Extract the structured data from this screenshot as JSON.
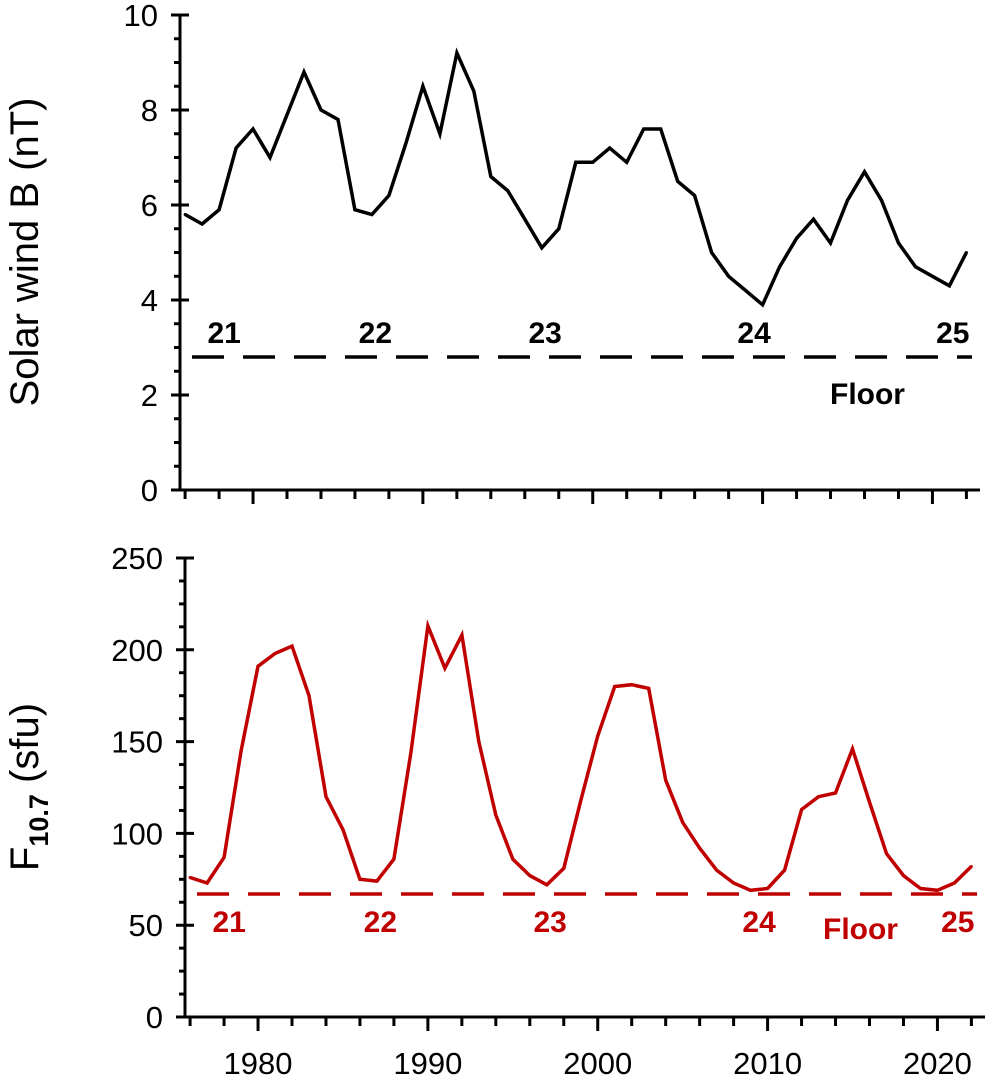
{
  "chart_data": [
    {
      "type": "line",
      "ylabel": "Solar wind B (nT)",
      "ylim": [
        0,
        10
      ],
      "yticks": [
        0,
        2,
        4,
        6,
        8,
        10
      ],
      "xlim": [
        1975.7,
        2022.8
      ],
      "grid": false,
      "series": [
        {
          "color": "#000000",
          "x": [
            1976,
            1977,
            1978,
            1979,
            1980,
            1981,
            1982,
            1983,
            1984,
            1985,
            1986,
            1987,
            1988,
            1989,
            1990,
            1991,
            1992,
            1993,
            1994,
            1995,
            1996,
            1997,
            1998,
            1999,
            2000,
            2001,
            2002,
            2003,
            2004,
            2005,
            2006,
            2007,
            2008,
            2009,
            2010,
            2011,
            2012,
            2013,
            2014,
            2015,
            2016,
            2017,
            2018,
            2019,
            2020,
            2021,
            2022
          ],
          "y": [
            5.8,
            5.6,
            5.9,
            7.2,
            7.6,
            7.0,
            7.9,
            8.8,
            8.0,
            7.8,
            5.9,
            5.8,
            6.2,
            7.3,
            8.5,
            7.5,
            9.2,
            8.4,
            6.6,
            6.3,
            5.7,
            5.1,
            5.5,
            6.9,
            6.9,
            7.2,
            6.9,
            7.6,
            7.6,
            6.5,
            6.2,
            5.0,
            4.5,
            4.2,
            3.9,
            4.7,
            5.3,
            5.7,
            5.2,
            6.1,
            6.7,
            6.1,
            5.2,
            4.7,
            4.5,
            4.3,
            5.0
          ]
        }
      ],
      "floor": {
        "value": 2.8,
        "label": "Floor",
        "color": "#000000"
      },
      "cycles": {
        "color": "#000000",
        "items": [
          {
            "label": "21",
            "x": 1978.3
          },
          {
            "label": "22",
            "x": 1987.2
          },
          {
            "label": "23",
            "x": 1997.2
          },
          {
            "label": "24",
            "x": 2009.5
          },
          {
            "label": "25",
            "x": 2021.2
          }
        ]
      }
    },
    {
      "type": "line",
      "ylabel": "F10.7 (sfu)",
      "ylabel_main": "F",
      "ylabel_sub": "10.7",
      "ylabel_rest": " (sfu)",
      "ylim": [
        0,
        250
      ],
      "yticks": [
        0,
        50,
        100,
        150,
        200,
        250
      ],
      "xlim": [
        1975.7,
        2022.8
      ],
      "xticks": [
        1980,
        1990,
        2000,
        2010,
        2020
      ],
      "grid": false,
      "series": [
        {
          "color": "#c00000",
          "x": [
            1976,
            1977,
            1978,
            1979,
            1980,
            1981,
            1982,
            1983,
            1984,
            1985,
            1986,
            1987,
            1988,
            1989,
            1990,
            1991,
            1992,
            1993,
            1994,
            1995,
            1996,
            1997,
            1998,
            1999,
            2000,
            2001,
            2002,
            2003,
            2004,
            2005,
            2006,
            2007,
            2008,
            2009,
            2010,
            2011,
            2012,
            2013,
            2014,
            2015,
            2016,
            2017,
            2018,
            2019,
            2020,
            2021,
            2022
          ],
          "y": [
            76,
            73,
            87,
            145,
            191,
            198,
            202,
            175,
            120,
            102,
            75,
            74,
            86,
            144,
            213,
            190,
            208,
            150,
            110,
            86,
            77,
            72,
            81,
            118,
            153,
            180,
            181,
            179,
            129,
            106,
            92,
            80,
            73,
            69,
            70,
            80,
            113,
            120,
            122,
            146,
            117,
            89,
            77,
            70,
            69,
            73,
            82
          ]
        }
      ],
      "floor": {
        "value": 67,
        "label": "Floor",
        "color": "#c00000"
      },
      "cycles": {
        "color": "#c00000",
        "items": [
          {
            "label": "21",
            "x": 1978.3
          },
          {
            "label": "22",
            "x": 1987.2
          },
          {
            "label": "23",
            "x": 1997.2
          },
          {
            "label": "24",
            "x": 2009.5
          },
          {
            "label": "25",
            "x": 2021.2
          }
        ]
      }
    }
  ]
}
